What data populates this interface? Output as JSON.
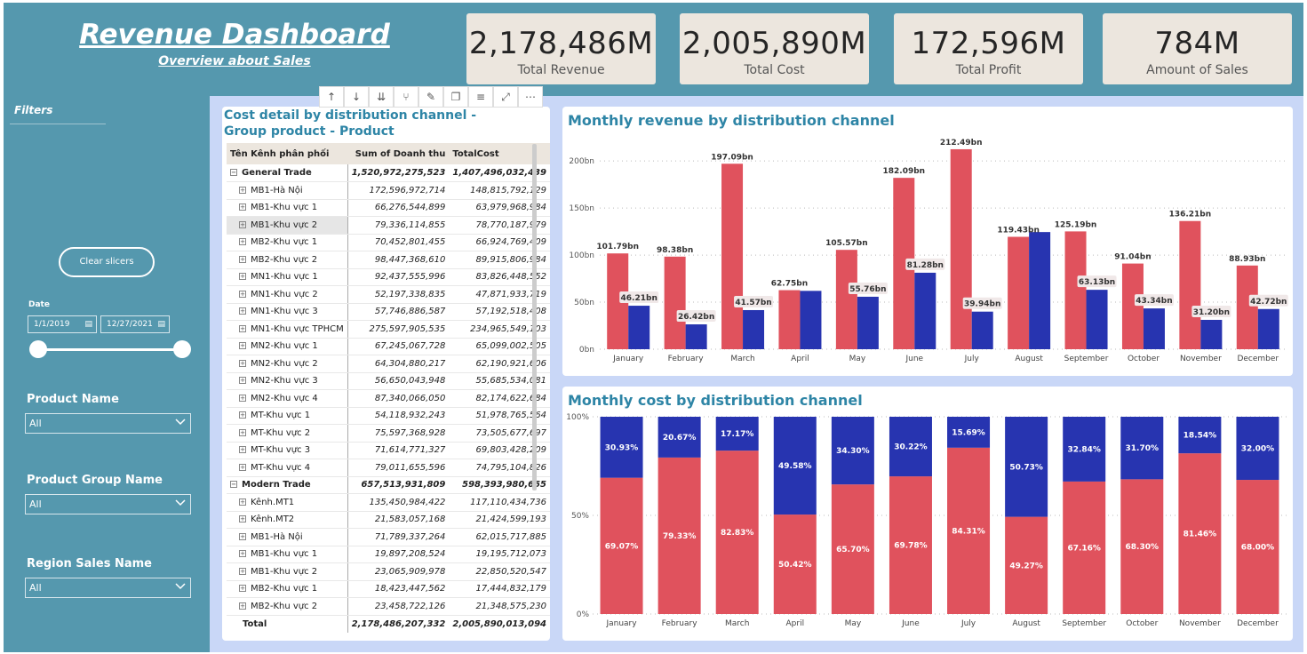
{
  "header": {
    "title": "Revenue Dashboard",
    "subtitle": "Overview about Sales"
  },
  "kpis": [
    {
      "value": "2,178,486M",
      "label": "Total Revenue"
    },
    {
      "value": "2,005,890M",
      "label": "Total Cost"
    },
    {
      "value": "172,596M",
      "label": "Total Profit"
    },
    {
      "value": "784M",
      "label": "Amount of Sales"
    }
  ],
  "filters": {
    "label": "Filters",
    "clear_label": "Clear slicers",
    "date_label": "Date",
    "date_start": "1/1/2019",
    "date_end": "12/27/2021",
    "slicers": [
      {
        "title": "Product Name",
        "value": "All"
      },
      {
        "title": "Product Group Name",
        "value": "All"
      },
      {
        "title": "Region Sales Name",
        "value": "All"
      }
    ]
  },
  "table": {
    "title": "Cost detail by distribution channel - Group product - Product",
    "columns": [
      "Tên Kênh phân phối",
      "Sum of Doanh thu",
      "TotalCost"
    ],
    "rows": [
      {
        "type": "group",
        "name": "General Trade",
        "rev": "1,520,972,275,523",
        "cost": "1,407,496,032,439"
      },
      {
        "type": "item",
        "name": "MB1-Hà Nội",
        "rev": "172,596,972,714",
        "cost": "148,815,792,129"
      },
      {
        "type": "item",
        "name": "MB1-Khu vực 1",
        "rev": "66,276,544,899",
        "cost": "63,979,968,984"
      },
      {
        "type": "item",
        "name": "MB1-Khu vực 2",
        "rev": "79,336,114,855",
        "cost": "78,770,187,979",
        "selected": true
      },
      {
        "type": "item",
        "name": "MB2-Khu vực 1",
        "rev": "70,452,801,455",
        "cost": "66,924,769,409"
      },
      {
        "type": "item",
        "name": "MB2-Khu vực 2",
        "rev": "98,447,368,610",
        "cost": "89,915,806,984"
      },
      {
        "type": "item",
        "name": "MN1-Khu vực 1",
        "rev": "92,437,555,996",
        "cost": "83,826,448,552"
      },
      {
        "type": "item",
        "name": "MN1-Khu vực 2",
        "rev": "52,197,338,835",
        "cost": "47,871,933,719"
      },
      {
        "type": "item",
        "name": "MN1-Khu vực 3",
        "rev": "57,746,886,587",
        "cost": "57,192,518,408"
      },
      {
        "type": "item",
        "name": "MN1-Khu vực TPHCM",
        "rev": "275,597,905,535",
        "cost": "234,965,549,103"
      },
      {
        "type": "item",
        "name": "MN2-Khu vực 1",
        "rev": "67,245,067,728",
        "cost": "65,099,002,505"
      },
      {
        "type": "item",
        "name": "MN2-Khu vực 2",
        "rev": "64,304,880,217",
        "cost": "62,190,921,606"
      },
      {
        "type": "item",
        "name": "MN2-Khu vực 3",
        "rev": "56,650,043,948",
        "cost": "55,685,534,081"
      },
      {
        "type": "item",
        "name": "MN2-Khu vực 4",
        "rev": "87,340,066,050",
        "cost": "82,174,622,684"
      },
      {
        "type": "item",
        "name": "MT-Khu vực 1",
        "rev": "54,118,932,243",
        "cost": "51,978,765,564"
      },
      {
        "type": "item",
        "name": "MT-Khu vực 2",
        "rev": "75,597,368,928",
        "cost": "73,505,677,697"
      },
      {
        "type": "item",
        "name": "MT-Khu vực 3",
        "rev": "71,614,771,327",
        "cost": "69,803,428,209"
      },
      {
        "type": "item",
        "name": "MT-Khu vực 4",
        "rev": "79,011,655,596",
        "cost": "74,795,104,826"
      },
      {
        "type": "group",
        "name": "Modern Trade",
        "rev": "657,513,931,809",
        "cost": "598,393,980,655"
      },
      {
        "type": "item",
        "name": "Kênh.MT1",
        "rev": "135,450,984,422",
        "cost": "117,110,434,736"
      },
      {
        "type": "item",
        "name": "Kênh.MT2",
        "rev": "21,583,057,168",
        "cost": "21,424,599,193"
      },
      {
        "type": "item",
        "name": "MB1-Hà Nội",
        "rev": "71,789,337,264",
        "cost": "62,015,717,885"
      },
      {
        "type": "item",
        "name": "MB1-Khu vực 1",
        "rev": "19,897,208,524",
        "cost": "19,195,712,073"
      },
      {
        "type": "item",
        "name": "MB1-Khu vực 2",
        "rev": "23,065,909,978",
        "cost": "22,850,520,547"
      },
      {
        "type": "item",
        "name": "MB2-Khu vực 1",
        "rev": "18,423,447,562",
        "cost": "17,444,832,179"
      },
      {
        "type": "item",
        "name": "MB2-Khu vực 2",
        "rev": "23,458,722,126",
        "cost": "21,348,575,230"
      },
      {
        "type": "total",
        "name": "Total",
        "rev": "2,178,486,207,332",
        "cost": "2,005,890,013,094"
      }
    ]
  },
  "colors": {
    "red": "#e0525d",
    "blue": "#2734b0",
    "title": "#2e85a6"
  },
  "chart_data": [
    {
      "type": "bar",
      "title": "Monthly revenue by distribution channel",
      "categories": [
        "January",
        "February",
        "March",
        "April",
        "May",
        "June",
        "July",
        "August",
        "September",
        "October",
        "November",
        "December"
      ],
      "ylim": [
        0,
        220
      ],
      "yticks": [
        "0bn",
        "50bn",
        "100bn",
        "150bn",
        "200bn"
      ],
      "series": [
        {
          "values": [
            101.79,
            98.38,
            197.09,
            62.75,
            105.57,
            182.09,
            212.49,
            119.43,
            125.19,
            91.04,
            136.21,
            88.93
          ],
          "labels": [
            "101.79bn",
            "98.38bn",
            "197.09bn",
            "62.75bn",
            "105.57bn",
            "182.09bn",
            "212.49bn",
            "119.43bn",
            "125.19bn",
            "91.04bn",
            "136.21bn",
            "88.93bn"
          ]
        },
        {
          "values": [
            46.21,
            26.42,
            41.57,
            62.0,
            55.76,
            81.28,
            39.94,
            124.5,
            63.13,
            43.34,
            31.2,
            42.72
          ],
          "labels": [
            "46.21bn",
            "26.42bn",
            "41.57bn",
            "",
            "55.76bn",
            "81.28bn",
            "39.94bn",
            "",
            "63.13bn",
            "43.34bn",
            "31.20bn",
            "42.72bn"
          ]
        }
      ]
    },
    {
      "type": "bar",
      "title": "Monthly cost by distribution channel",
      "categories": [
        "January",
        "February",
        "March",
        "April",
        "May",
        "June",
        "July",
        "August",
        "September",
        "October",
        "November",
        "December"
      ],
      "ylim": [
        0,
        100
      ],
      "yticks": [
        "0%",
        "50%",
        "100%"
      ],
      "series": [
        {
          "values": [
            69.07,
            79.33,
            82.83,
            50.42,
            65.7,
            69.78,
            84.31,
            49.27,
            67.16,
            68.3,
            81.46,
            68.0
          ],
          "labels": [
            "69.07%",
            "79.33%",
            "82.83%",
            "50.42%",
            "65.70%",
            "69.78%",
            "84.31%",
            "49.27%",
            "67.16%",
            "68.30%",
            "81.46%",
            "68.00%"
          ]
        },
        {
          "values": [
            30.93,
            20.67,
            17.17,
            49.58,
            34.3,
            30.22,
            15.69,
            50.73,
            32.84,
            31.7,
            18.54,
            32.0
          ],
          "labels": [
            "30.93%",
            "20.67%",
            "17.17%",
            "49.58%",
            "34.30%",
            "30.22%",
            "15.69%",
            "50.73%",
            "32.84%",
            "31.70%",
            "18.54%",
            "32.00%"
          ]
        }
      ]
    }
  ]
}
